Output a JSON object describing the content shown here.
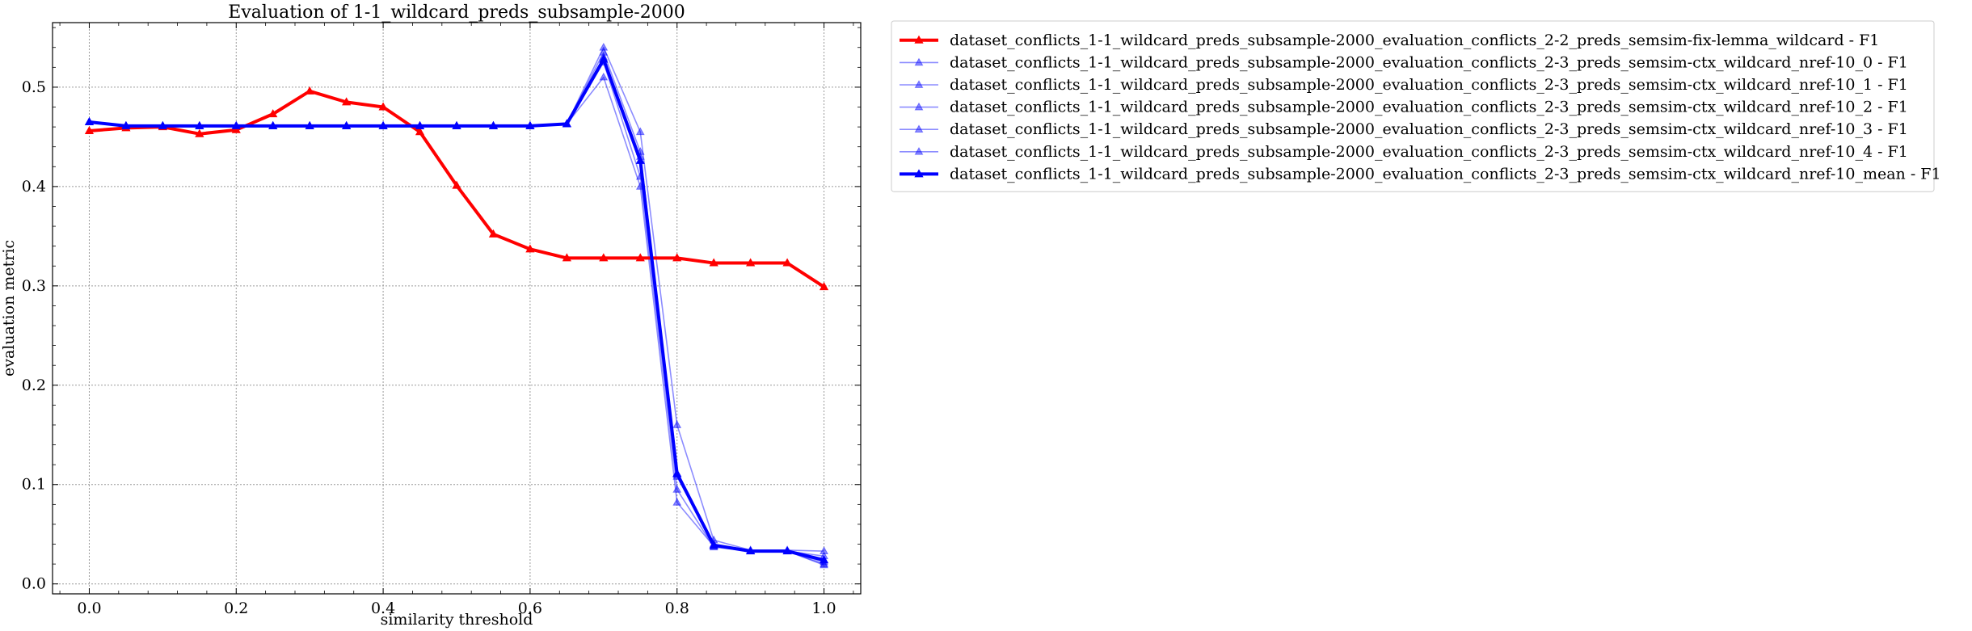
{
  "chart_data": {
    "type": "line",
    "title": "Evaluation of 1-1_wildcard_preds_subsample-2000",
    "xlabel": "similarity threshold",
    "ylabel": "evaluation metric",
    "xlim": [
      -0.05,
      1.05
    ],
    "ylim": [
      -0.01,
      0.565
    ],
    "grid": true,
    "legend_position": "outside top-right",
    "x_ticks": [
      "0.0",
      "0.2",
      "0.4",
      "0.6",
      "0.8",
      "1.0"
    ],
    "y_ticks": [
      "0.0",
      "0.1",
      "0.2",
      "0.3",
      "0.4",
      "0.5"
    ],
    "x": [
      0.0,
      0.05,
      0.1,
      0.15,
      0.2,
      0.25,
      0.3,
      0.35,
      0.4,
      0.45,
      0.5,
      0.55,
      0.6,
      0.65,
      0.7,
      0.75,
      0.8,
      0.85,
      0.9,
      0.95,
      1.0
    ],
    "series": [
      {
        "name": "dataset_conflicts_1-1_wildcard_preds_subsample-2000_evaluation_conflicts_2-2_preds_semsim-fix-lemma_wildcard - F1",
        "color": "#ff0000",
        "style": "bold",
        "values": [
          0.456,
          0.459,
          0.46,
          0.453,
          0.457,
          0.473,
          0.496,
          0.485,
          0.48,
          0.455,
          0.401,
          0.352,
          0.337,
          0.328,
          0.328,
          0.328,
          0.328,
          0.323,
          0.323,
          0.323,
          0.299
        ]
      },
      {
        "name": "dataset_conflicts_1-1_wildcard_preds_subsample-2000_evaluation_conflicts_2-3_preds_semsim-ctx_wildcard_nref-10_0 - F1",
        "color": "#0000ff",
        "style": "thin",
        "values": [
          0.465,
          0.461,
          0.461,
          0.461,
          0.461,
          0.461,
          0.461,
          0.461,
          0.461,
          0.461,
          0.461,
          0.461,
          0.461,
          0.463,
          0.54,
          0.455,
          0.16,
          0.044,
          0.034,
          0.034,
          0.033
        ]
      },
      {
        "name": "dataset_conflicts_1-1_wildcard_preds_subsample-2000_evaluation_conflicts_2-3_preds_semsim-ctx_wildcard_nref-10_1 - F1",
        "color": "#0000ff",
        "style": "thin",
        "values": [
          0.465,
          0.461,
          0.461,
          0.461,
          0.461,
          0.461,
          0.461,
          0.461,
          0.461,
          0.461,
          0.461,
          0.461,
          0.461,
          0.463,
          0.51,
          0.4,
          0.082,
          0.038,
          0.033,
          0.033,
          0.019
        ]
      },
      {
        "name": "dataset_conflicts_1-1_wildcard_preds_subsample-2000_evaluation_conflicts_2-3_preds_semsim-ctx_wildcard_nref-10_2 - F1",
        "color": "#0000ff",
        "style": "thin",
        "values": [
          0.465,
          0.461,
          0.461,
          0.461,
          0.461,
          0.461,
          0.461,
          0.461,
          0.461,
          0.461,
          0.461,
          0.461,
          0.461,
          0.463,
          0.535,
          0.435,
          0.11,
          0.04,
          0.033,
          0.033,
          0.028
        ]
      },
      {
        "name": "dataset_conflicts_1-1_wildcard_preds_subsample-2000_evaluation_conflicts_2-3_preds_semsim-ctx_wildcard_nref-10_3 - F1",
        "color": "#0000ff",
        "style": "thin",
        "values": [
          0.465,
          0.461,
          0.461,
          0.461,
          0.461,
          0.461,
          0.461,
          0.461,
          0.461,
          0.461,
          0.461,
          0.461,
          0.461,
          0.463,
          0.525,
          0.41,
          0.095,
          0.037,
          0.033,
          0.033,
          0.022
        ]
      },
      {
        "name": "dataset_conflicts_1-1_wildcard_preds_subsample-2000_evaluation_conflicts_2-3_preds_semsim-ctx_wildcard_nref-10_4 - F1",
        "color": "#0000ff",
        "style": "thin",
        "values": [
          0.465,
          0.461,
          0.461,
          0.461,
          0.461,
          0.461,
          0.461,
          0.461,
          0.461,
          0.461,
          0.461,
          0.461,
          0.461,
          0.463,
          0.53,
          0.43,
          0.108,
          0.038,
          0.033,
          0.033,
          0.02
        ]
      },
      {
        "name": "dataset_conflicts_1-1_wildcard_preds_subsample-2000_evaluation_conflicts_2-3_preds_semsim-ctx_wildcard_nref-10_mean - F1",
        "color": "#0000ff",
        "style": "bold",
        "values": [
          0.465,
          0.461,
          0.461,
          0.461,
          0.461,
          0.461,
          0.461,
          0.461,
          0.461,
          0.461,
          0.461,
          0.461,
          0.461,
          0.463,
          0.528,
          0.426,
          0.111,
          0.039,
          0.033,
          0.033,
          0.024
        ]
      }
    ]
  }
}
